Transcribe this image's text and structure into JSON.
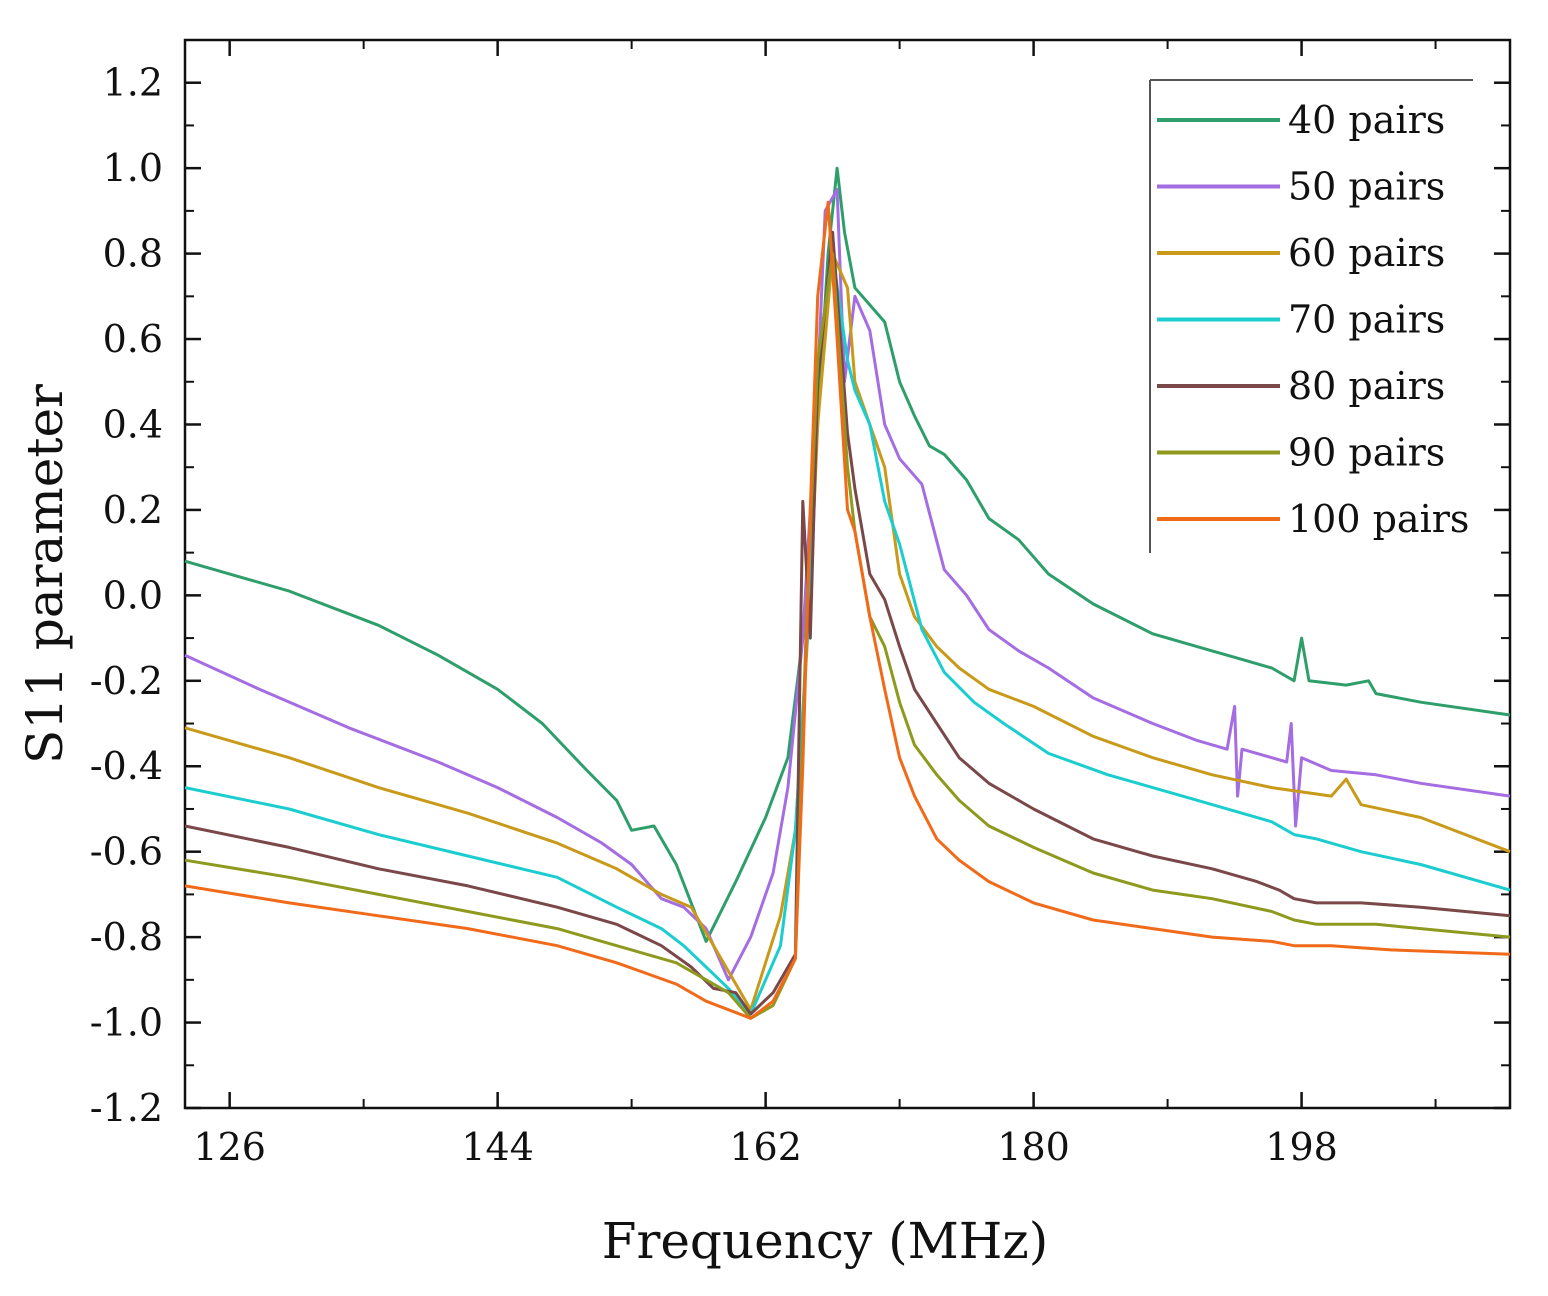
{
  "chart_data": {
    "type": "line",
    "xlabel": "Frequency (MHz)",
    "ylabel": "S11 parameter",
    "xlim": [
      123,
      212
    ],
    "ylim": [
      -1.2,
      1.3
    ],
    "xticks": [
      126,
      144,
      162,
      180,
      198
    ],
    "xtick_labels": [
      "126",
      "144",
      "162",
      "180",
      "198"
    ],
    "yticks": [
      -1.2,
      -1.0,
      -0.8,
      -0.6,
      -0.4,
      -0.2,
      0.0,
      0.2,
      0.4,
      0.6,
      0.8,
      1.0,
      1.2
    ],
    "ytick_labels": [
      "-1.2",
      "-1.0",
      "-0.8",
      "-0.6",
      "-0.4",
      "-0.2",
      "0.0",
      "0.2",
      "0.4",
      "0.6",
      "0.8",
      "1.0",
      "1.2"
    ],
    "grid": false,
    "legend_position": "top-right",
    "series": [
      {
        "name": "40 pairs",
        "color": "#2e9e6b",
        "points": [
          [
            123,
            0.08
          ],
          [
            130,
            0.01
          ],
          [
            136,
            -0.07
          ],
          [
            140,
            -0.14
          ],
          [
            144,
            -0.22
          ],
          [
            147,
            -0.3
          ],
          [
            150,
            -0.41
          ],
          [
            152,
            -0.48
          ],
          [
            153,
            -0.55
          ],
          [
            154.5,
            -0.54
          ],
          [
            156,
            -0.63
          ],
          [
            158,
            -0.81
          ],
          [
            160,
            -0.67
          ],
          [
            162,
            -0.52
          ],
          [
            163.5,
            -0.38
          ],
          [
            164.5,
            -0.1
          ],
          [
            165.5,
            0.4
          ],
          [
            166.2,
            0.8
          ],
          [
            166.8,
            1.0
          ],
          [
            167.3,
            0.85
          ],
          [
            168,
            0.72
          ],
          [
            169,
            0.68
          ],
          [
            170,
            0.64
          ],
          [
            171,
            0.5
          ],
          [
            172,
            0.42
          ],
          [
            173,
            0.35
          ],
          [
            174,
            0.33
          ],
          [
            175.5,
            0.27
          ],
          [
            177,
            0.18
          ],
          [
            179,
            0.13
          ],
          [
            181,
            0.05
          ],
          [
            184,
            -0.02
          ],
          [
            188,
            -0.09
          ],
          [
            192,
            -0.13
          ],
          [
            194,
            -0.15
          ],
          [
            196,
            -0.17
          ],
          [
            197.5,
            -0.2
          ],
          [
            198,
            -0.1
          ],
          [
            198.5,
            -0.2
          ],
          [
            201,
            -0.21
          ],
          [
            202.5,
            -0.2
          ],
          [
            203,
            -0.23
          ],
          [
            206,
            -0.25
          ],
          [
            212,
            -0.28
          ]
        ]
      },
      {
        "name": "50 pairs",
        "color": "#a56de2",
        "points": [
          [
            123,
            -0.14
          ],
          [
            128,
            -0.22
          ],
          [
            134,
            -0.31
          ],
          [
            140,
            -0.39
          ],
          [
            144,
            -0.45
          ],
          [
            148,
            -0.52
          ],
          [
            151,
            -0.58
          ],
          [
            153,
            -0.63
          ],
          [
            155,
            -0.71
          ],
          [
            156.5,
            -0.73
          ],
          [
            158,
            -0.78
          ],
          [
            159.5,
            -0.9
          ],
          [
            161,
            -0.8
          ],
          [
            162.5,
            -0.65
          ],
          [
            163.5,
            -0.45
          ],
          [
            164.5,
            -0.1
          ],
          [
            165.5,
            0.5
          ],
          [
            166,
            0.9
          ],
          [
            166.8,
            0.95
          ],
          [
            167.3,
            0.5
          ],
          [
            168,
            0.7
          ],
          [
            169,
            0.62
          ],
          [
            170,
            0.4
          ],
          [
            171,
            0.32
          ],
          [
            172.5,
            0.26
          ],
          [
            174,
            0.06
          ],
          [
            175.5,
            0.0
          ],
          [
            177,
            -0.08
          ],
          [
            179,
            -0.13
          ],
          [
            181,
            -0.17
          ],
          [
            184,
            -0.24
          ],
          [
            188,
            -0.3
          ],
          [
            191,
            -0.34
          ],
          [
            193,
            -0.36
          ],
          [
            193.5,
            -0.26
          ],
          [
            193.7,
            -0.47
          ],
          [
            194,
            -0.36
          ],
          [
            196,
            -0.38
          ],
          [
            197,
            -0.39
          ],
          [
            197.3,
            -0.3
          ],
          [
            197.6,
            -0.54
          ],
          [
            198,
            -0.38
          ],
          [
            200,
            -0.41
          ],
          [
            203,
            -0.42
          ],
          [
            206,
            -0.44
          ],
          [
            212,
            -0.47
          ]
        ]
      },
      {
        "name": "60 pairs",
        "color": "#c99a1a",
        "points": [
          [
            123,
            -0.31
          ],
          [
            130,
            -0.38
          ],
          [
            136,
            -0.45
          ],
          [
            142,
            -0.51
          ],
          [
            148,
            -0.58
          ],
          [
            152,
            -0.64
          ],
          [
            155,
            -0.7
          ],
          [
            157,
            -0.73
          ],
          [
            158,
            -0.79
          ],
          [
            159.5,
            -0.88
          ],
          [
            161,
            -0.97
          ],
          [
            163,
            -0.75
          ],
          [
            164,
            -0.55
          ],
          [
            165,
            0.0
          ],
          [
            165.5,
            0.4
          ],
          [
            166.5,
            0.8
          ],
          [
            167.5,
            0.72
          ],
          [
            168,
            0.5
          ],
          [
            169,
            0.4
          ],
          [
            170,
            0.3
          ],
          [
            171,
            0.05
          ],
          [
            172,
            -0.05
          ],
          [
            173.5,
            -0.12
          ],
          [
            175,
            -0.17
          ],
          [
            177,
            -0.22
          ],
          [
            180,
            -0.26
          ],
          [
            184,
            -0.33
          ],
          [
            188,
            -0.38
          ],
          [
            192,
            -0.42
          ],
          [
            196,
            -0.45
          ],
          [
            198,
            -0.46
          ],
          [
            200,
            -0.47
          ],
          [
            201,
            -0.43
          ],
          [
            202,
            -0.49
          ],
          [
            206,
            -0.52
          ],
          [
            212,
            -0.6
          ]
        ]
      },
      {
        "name": "70 pairs",
        "color": "#1ccdd0",
        "points": [
          [
            123,
            -0.45
          ],
          [
            130,
            -0.5
          ],
          [
            136,
            -0.56
          ],
          [
            142,
            -0.61
          ],
          [
            148,
            -0.66
          ],
          [
            152,
            -0.73
          ],
          [
            155,
            -0.78
          ],
          [
            156.5,
            -0.82
          ],
          [
            158,
            -0.87
          ],
          [
            159.5,
            -0.92
          ],
          [
            161,
            -0.98
          ],
          [
            163,
            -0.82
          ],
          [
            164,
            -0.55
          ],
          [
            164.8,
            -0.1
          ],
          [
            165.5,
            0.55
          ],
          [
            166.5,
            0.8
          ],
          [
            167.5,
            0.55
          ],
          [
            168,
            0.48
          ],
          [
            169,
            0.4
          ],
          [
            170,
            0.22
          ],
          [
            171,
            0.12
          ],
          [
            172.5,
            -0.08
          ],
          [
            174,
            -0.18
          ],
          [
            176,
            -0.25
          ],
          [
            178,
            -0.3
          ],
          [
            181,
            -0.37
          ],
          [
            185,
            -0.42
          ],
          [
            190,
            -0.47
          ],
          [
            194,
            -0.51
          ],
          [
            196,
            -0.53
          ],
          [
            197.5,
            -0.56
          ],
          [
            199,
            -0.57
          ],
          [
            202,
            -0.6
          ],
          [
            206,
            -0.63
          ],
          [
            212,
            -0.69
          ]
        ]
      },
      {
        "name": "80 pairs",
        "color": "#7a4848",
        "points": [
          [
            123,
            -0.54
          ],
          [
            130,
            -0.59
          ],
          [
            136,
            -0.64
          ],
          [
            142,
            -0.68
          ],
          [
            148,
            -0.73
          ],
          [
            152,
            -0.77
          ],
          [
            155,
            -0.82
          ],
          [
            157,
            -0.87
          ],
          [
            158.5,
            -0.92
          ],
          [
            160,
            -0.93
          ],
          [
            161,
            -0.98
          ],
          [
            162.5,
            -0.93
          ],
          [
            164,
            -0.84
          ],
          [
            164.5,
            0.22
          ],
          [
            165,
            -0.1
          ],
          [
            165.5,
            0.5
          ],
          [
            166.5,
            0.85
          ],
          [
            167.5,
            0.38
          ],
          [
            168,
            0.25
          ],
          [
            169,
            0.05
          ],
          [
            170,
            -0.01
          ],
          [
            171,
            -0.12
          ],
          [
            172,
            -0.22
          ],
          [
            173.5,
            -0.3
          ],
          [
            175,
            -0.38
          ],
          [
            177,
            -0.44
          ],
          [
            180,
            -0.5
          ],
          [
            184,
            -0.57
          ],
          [
            188,
            -0.61
          ],
          [
            192,
            -0.64
          ],
          [
            195,
            -0.67
          ],
          [
            196.5,
            -0.69
          ],
          [
            197.5,
            -0.71
          ],
          [
            199,
            -0.72
          ],
          [
            202,
            -0.72
          ],
          [
            206,
            -0.73
          ],
          [
            212,
            -0.75
          ]
        ]
      },
      {
        "name": "90 pairs",
        "color": "#8d9a1e",
        "points": [
          [
            123,
            -0.62
          ],
          [
            130,
            -0.66
          ],
          [
            136,
            -0.7
          ],
          [
            142,
            -0.74
          ],
          [
            148,
            -0.78
          ],
          [
            152,
            -0.82
          ],
          [
            156,
            -0.86
          ],
          [
            158,
            -0.9
          ],
          [
            159.5,
            -0.93
          ],
          [
            161,
            -0.99
          ],
          [
            162.5,
            -0.96
          ],
          [
            164,
            -0.85
          ],
          [
            164.8,
            0.0
          ],
          [
            165.5,
            0.55
          ],
          [
            166.5,
            0.8
          ],
          [
            167.5,
            0.3
          ],
          [
            168,
            0.15
          ],
          [
            169,
            -0.05
          ],
          [
            170,
            -0.12
          ],
          [
            171,
            -0.25
          ],
          [
            172,
            -0.35
          ],
          [
            173.5,
            -0.42
          ],
          [
            175,
            -0.48
          ],
          [
            177,
            -0.54
          ],
          [
            180,
            -0.59
          ],
          [
            184,
            -0.65
          ],
          [
            188,
            -0.69
          ],
          [
            192,
            -0.71
          ],
          [
            196,
            -0.74
          ],
          [
            197.5,
            -0.76
          ],
          [
            199,
            -0.77
          ],
          [
            203,
            -0.77
          ],
          [
            206,
            -0.78
          ],
          [
            212,
            -0.8
          ]
        ]
      },
      {
        "name": "100 pairs",
        "color": "#f06a1a",
        "points": [
          [
            123,
            -0.68
          ],
          [
            130,
            -0.72
          ],
          [
            136,
            -0.75
          ],
          [
            142,
            -0.78
          ],
          [
            148,
            -0.82
          ],
          [
            152,
            -0.86
          ],
          [
            156,
            -0.91
          ],
          [
            158,
            -0.95
          ],
          [
            159.5,
            -0.97
          ],
          [
            161,
            -0.99
          ],
          [
            162.5,
            -0.95
          ],
          [
            164,
            -0.85
          ],
          [
            164.5,
            -0.4
          ],
          [
            165,
            0.2
          ],
          [
            165.5,
            0.7
          ],
          [
            166.2,
            0.92
          ],
          [
            166.8,
            0.6
          ],
          [
            167.5,
            0.2
          ],
          [
            168,
            0.15
          ],
          [
            169,
            -0.05
          ],
          [
            170,
            -0.22
          ],
          [
            171,
            -0.38
          ],
          [
            172,
            -0.47
          ],
          [
            173.5,
            -0.57
          ],
          [
            175,
            -0.62
          ],
          [
            177,
            -0.67
          ],
          [
            180,
            -0.72
          ],
          [
            184,
            -0.76
          ],
          [
            188,
            -0.78
          ],
          [
            192,
            -0.8
          ],
          [
            196,
            -0.81
          ],
          [
            197.5,
            -0.82
          ],
          [
            200,
            -0.82
          ],
          [
            204,
            -0.83
          ],
          [
            212,
            -0.84
          ]
        ]
      }
    ]
  }
}
